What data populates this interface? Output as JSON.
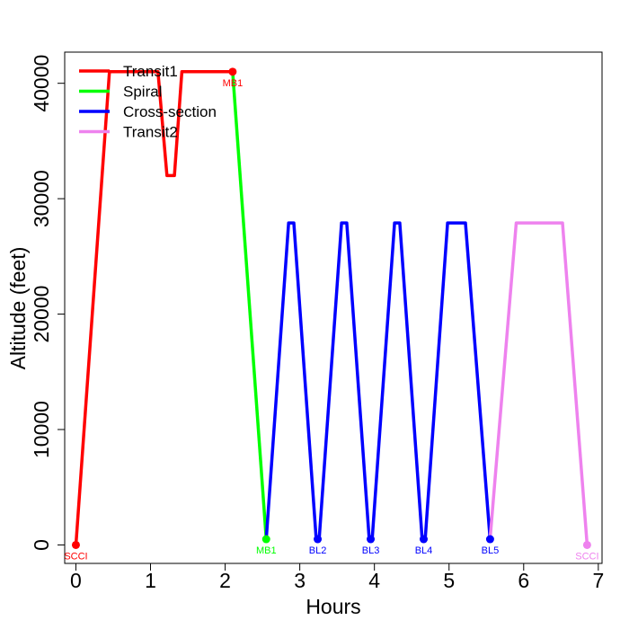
{
  "chart_data": {
    "type": "line",
    "xlabel": "Hours",
    "ylabel": "Altitude (feet)",
    "xlim": [
      -0.15,
      7.05
    ],
    "ylim": [
      -1600,
      42700
    ],
    "x_ticks": [
      0,
      1,
      2,
      3,
      4,
      5,
      6,
      7
    ],
    "y_ticks": [
      0,
      10000,
      20000,
      30000,
      40000
    ],
    "legend_position": "top-left",
    "series": [
      {
        "name": "Transit1",
        "color": "#ff0000",
        "points": [
          [
            0,
            0
          ],
          [
            0.45,
            41000
          ],
          [
            1.1,
            41000
          ],
          [
            1.22,
            32000
          ],
          [
            1.32,
            32000
          ],
          [
            1.42,
            41000
          ],
          [
            2.1,
            41000
          ]
        ]
      },
      {
        "name": "Spiral",
        "color": "#00ff00",
        "points": [
          [
            2.1,
            41000
          ],
          [
            2.55,
            500
          ]
        ]
      },
      {
        "name": "Cross-section",
        "color": "#0000ff",
        "points": [
          [
            2.55,
            500
          ],
          [
            2.85,
            27900
          ],
          [
            2.92,
            27900
          ],
          [
            3.22,
            500
          ],
          [
            3.26,
            500
          ],
          [
            3.56,
            27900
          ],
          [
            3.63,
            27900
          ],
          [
            3.93,
            500
          ],
          [
            3.97,
            500
          ],
          [
            4.27,
            27900
          ],
          [
            4.34,
            27900
          ],
          [
            4.64,
            500
          ],
          [
            4.68,
            500
          ],
          [
            4.98,
            27900
          ],
          [
            5.22,
            27900
          ],
          [
            5.55,
            500
          ]
        ]
      },
      {
        "name": "Transit2",
        "color": "#ee82ee",
        "points": [
          [
            5.55,
            500
          ],
          [
            5.9,
            27900
          ],
          [
            6.52,
            27900
          ],
          [
            6.85,
            0
          ]
        ]
      }
    ],
    "waypoints": [
      {
        "label": "SCCI",
        "x": 0,
        "y": 0,
        "color": "#ff0000"
      },
      {
        "label": "MB1",
        "x": 2.1,
        "y": 41000,
        "color": "#ff0000"
      },
      {
        "label": "MB1",
        "x": 2.55,
        "y": 500,
        "color": "#00ff00"
      },
      {
        "label": "BL2",
        "x": 3.24,
        "y": 500,
        "color": "#0000ff"
      },
      {
        "label": "BL3",
        "x": 3.95,
        "y": 500,
        "color": "#0000ff"
      },
      {
        "label": "BL4",
        "x": 4.66,
        "y": 500,
        "color": "#0000ff"
      },
      {
        "label": "BL5",
        "x": 5.55,
        "y": 500,
        "color": "#0000ff"
      },
      {
        "label": "SCCI",
        "x": 6.85,
        "y": 0,
        "color": "#ee82ee"
      }
    ]
  }
}
